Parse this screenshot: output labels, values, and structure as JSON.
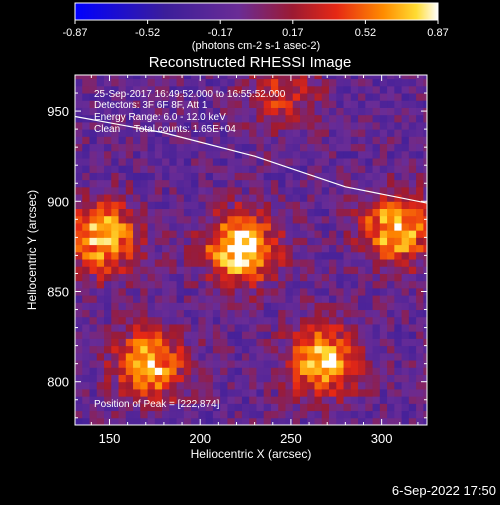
{
  "chart_data": {
    "type": "heatmap",
    "title": "Reconstructed RHESSI Image",
    "xlabel": "Heliocentric X (arcsec)",
    "ylabel": "Heliocentric Y (arcsec)",
    "xlim": [
      131,
      325
    ],
    "ylim": [
      776,
      970
    ],
    "x_ticks": [
      150,
      200,
      250,
      300
    ],
    "y_ticks": [
      800,
      850,
      900,
      950
    ],
    "grid": false,
    "colorbar": {
      "placement": "top",
      "ticks": [
        "-0.87",
        "-0.52",
        "-0.17",
        "0.17",
        "0.52",
        "0.87"
      ],
      "unit_label": "(photons cm-2 s-1 asec-2)",
      "range": [
        -0.87,
        0.87
      ]
    },
    "annotations": [
      "25-Sep-2017 16:49:52.000 to 16:55:52.000",
      "Detectors: 3F 6F 8F, Att 1",
      "Energy Range: 6.0 - 12.0 keV",
      "Clean     Total counts: 1.65E+04",
      "Position of Peak = [222,874]"
    ],
    "peak": {
      "x": 222,
      "y": 874
    },
    "sources": [
      {
        "x": 222,
        "y": 874,
        "intensity": 0.87
      },
      {
        "x": 147,
        "y": 880,
        "intensity": 0.7
      },
      {
        "x": 308,
        "y": 885,
        "intensity": 0.72
      },
      {
        "x": 172,
        "y": 810,
        "intensity": 0.68
      },
      {
        "x": 267,
        "y": 812,
        "intensity": 0.7
      },
      {
        "x": 245,
        "y": 960,
        "intensity": 0.3
      }
    ],
    "limb_curve": [
      [
        131,
        947
      ],
      [
        180,
        938
      ],
      [
        230,
        925
      ],
      [
        280,
        908
      ],
      [
        325,
        899
      ]
    ]
  },
  "footer_date": "6-Sep-2022 17:50",
  "colors": {
    "background": "#000000",
    "text": "#ffffff",
    "colormap": [
      "#0000ff",
      "#3c1e9a",
      "#6a2c96",
      "#9c1a32",
      "#e62814",
      "#ff8c00",
      "#ffdc32",
      "#ffffff"
    ]
  }
}
